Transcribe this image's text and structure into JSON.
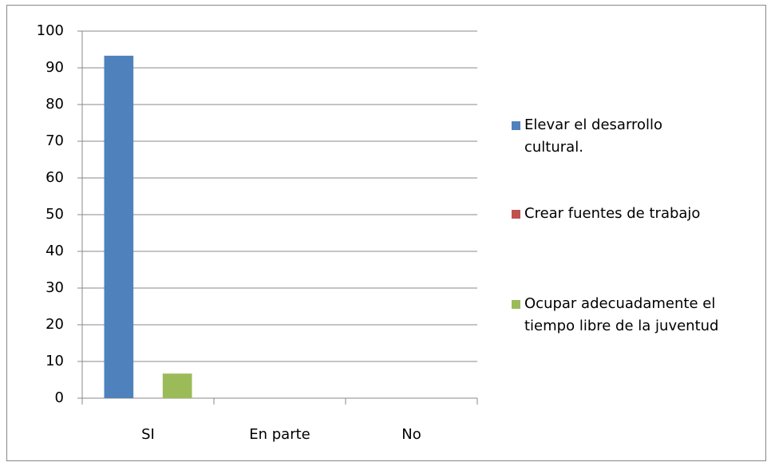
{
  "chart_data": {
    "type": "bar",
    "categories": [
      "SI",
      "En parte",
      "No"
    ],
    "series": [
      {
        "name": "Elevar el desarrollo cultural.",
        "color": "#4f81bd",
        "values": [
          93.3,
          0,
          0
        ]
      },
      {
        "name": "Crear fuentes de trabajo",
        "color": "#c0504d",
        "values": [
          0,
          0,
          0
        ]
      },
      {
        "name": "Ocupar adecuadamente el tiempo libre de la juventud",
        "color": "#9bbb59",
        "values": [
          6.7,
          0,
          0
        ]
      }
    ],
    "ylim": [
      0,
      100
    ],
    "yticks": [
      0,
      10,
      20,
      30,
      40,
      50,
      60,
      70,
      80,
      90,
      100
    ],
    "grid": true,
    "legend": "right"
  }
}
